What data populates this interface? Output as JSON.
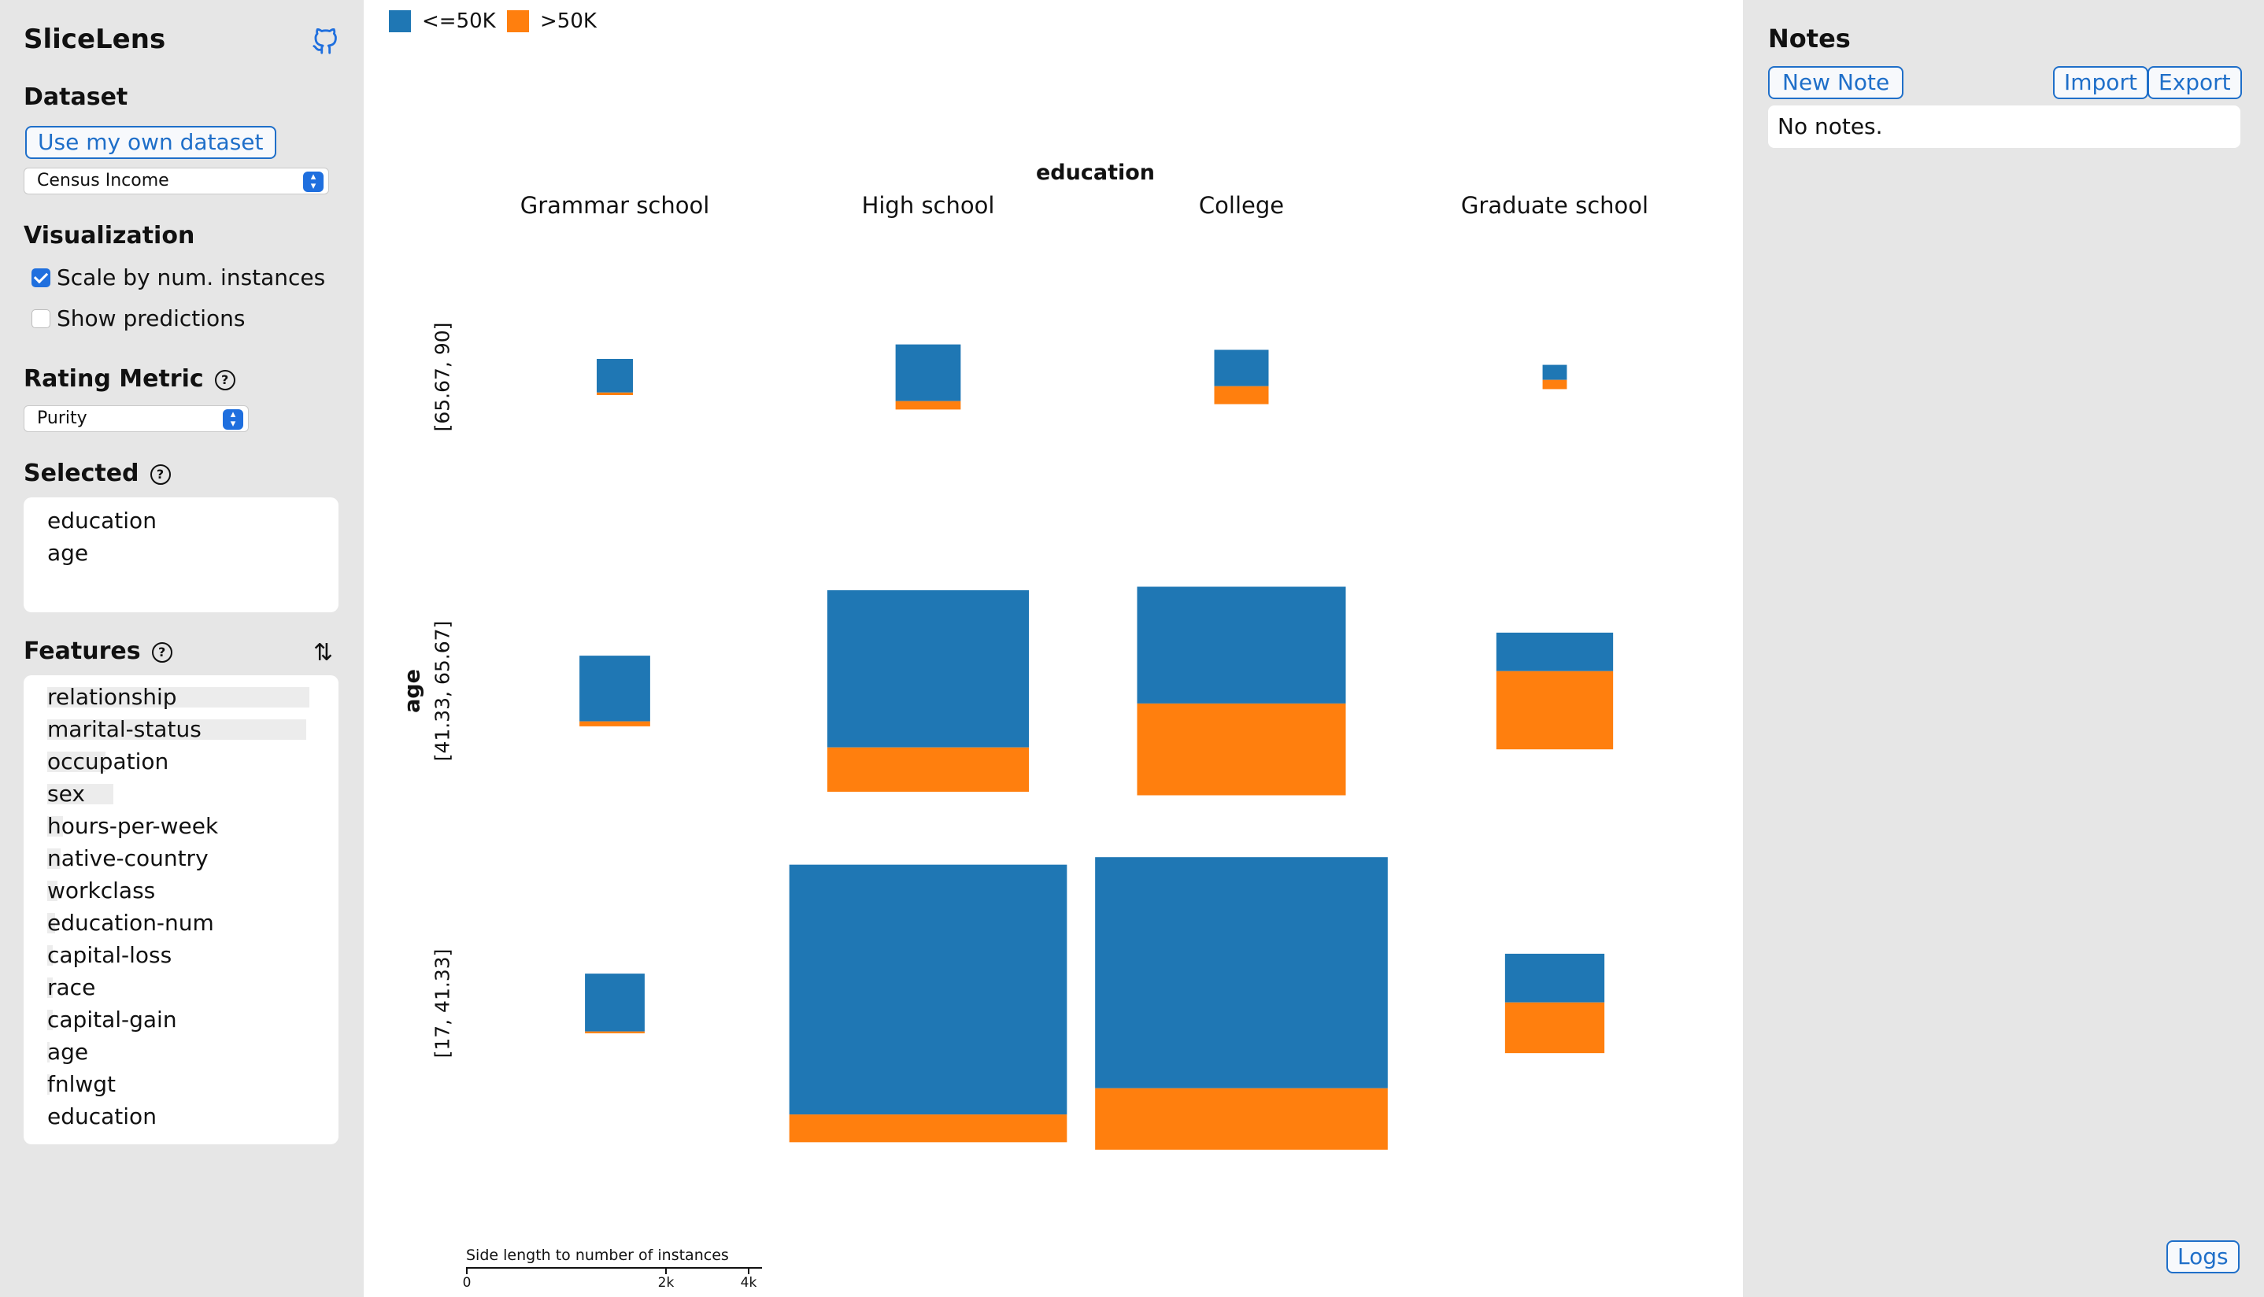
{
  "app": {
    "title": "SliceLens"
  },
  "dataset": {
    "heading": "Dataset",
    "own_button": "Use my own dataset",
    "selected": "Census Income"
  },
  "visualization": {
    "heading": "Visualization",
    "scale_label": "Scale by num. instances",
    "scale_checked": true,
    "predictions_label": "Show predictions",
    "predictions_checked": false
  },
  "rating": {
    "heading": "Rating Metric",
    "selected": "Purity"
  },
  "selected": {
    "heading": "Selected",
    "items": [
      "education",
      "age"
    ]
  },
  "features": {
    "heading": "Features",
    "items": [
      {
        "label": "relationship",
        "score": 0.99
      },
      {
        "label": "marital-status",
        "score": 0.98
      },
      {
        "label": "occupation",
        "score": 0.22
      },
      {
        "label": "sex",
        "score": 0.25
      },
      {
        "label": "hours-per-week",
        "score": 0.06
      },
      {
        "label": "native-country",
        "score": 0.05
      },
      {
        "label": "workclass",
        "score": 0.04
      },
      {
        "label": "education-num",
        "score": 0.03
      },
      {
        "label": "capital-loss",
        "score": 0.02
      },
      {
        "label": "race",
        "score": 0.02
      },
      {
        "label": "capital-gain",
        "score": 0.02
      },
      {
        "label": "age",
        "score": 0.01
      },
      {
        "label": "fnlwgt",
        "score": 0.01
      },
      {
        "label": "education",
        "score": 0.0
      }
    ]
  },
  "legend": [
    {
      "label": "<=50K",
      "color": "#1f77b4"
    },
    {
      "label": ">50K",
      "color": "#ff7f0e"
    }
  ],
  "chart_data": {
    "type": "mosaic",
    "x_feature": "education",
    "y_feature": "age",
    "columns": [
      "Grammar school",
      "High school",
      "College",
      "Graduate school"
    ],
    "rows": [
      "[65.67, 90]",
      "[41.33, 65.67]",
      "[17, 41.33]"
    ],
    "classes": [
      "<=50K",
      ">50K"
    ],
    "colors": [
      "#1f77b4",
      "#ff7f0e"
    ],
    "cells": [
      [
        {
          "count": 213,
          "pos_frac": 0.07
        },
        {
          "count": 690,
          "pos_frac": 0.13
        },
        {
          "count": 480,
          "pos_frac": 0.33
        },
        {
          "count": 96,
          "pos_frac": 0.38
        }
      ],
      [
        {
          "count": 812,
          "pos_frac": 0.07
        },
        {
          "count": 6612,
          "pos_frac": 0.22
        },
        {
          "count": 7079,
          "pos_frac": 0.44
        },
        {
          "count": 2217,
          "pos_frac": 0.67
        }
      ],
      [
        {
          "count": 579,
          "pos_frac": 0.03
        },
        {
          "count": 12535,
          "pos_frac": 0.1
        },
        {
          "count": 13922,
          "pos_frac": 0.21
        },
        {
          "count": 1607,
          "pos_frac": 0.51
        }
      ]
    ],
    "scale": {
      "label": "Side length to number of instances",
      "ticks": [
        "0",
        "2k",
        "4k"
      ]
    }
  },
  "notes": {
    "title": "Notes",
    "new_button": "New Note",
    "import_button": "Import",
    "export_button": "Export",
    "empty_text": "No notes.",
    "logs_button": "Logs"
  }
}
